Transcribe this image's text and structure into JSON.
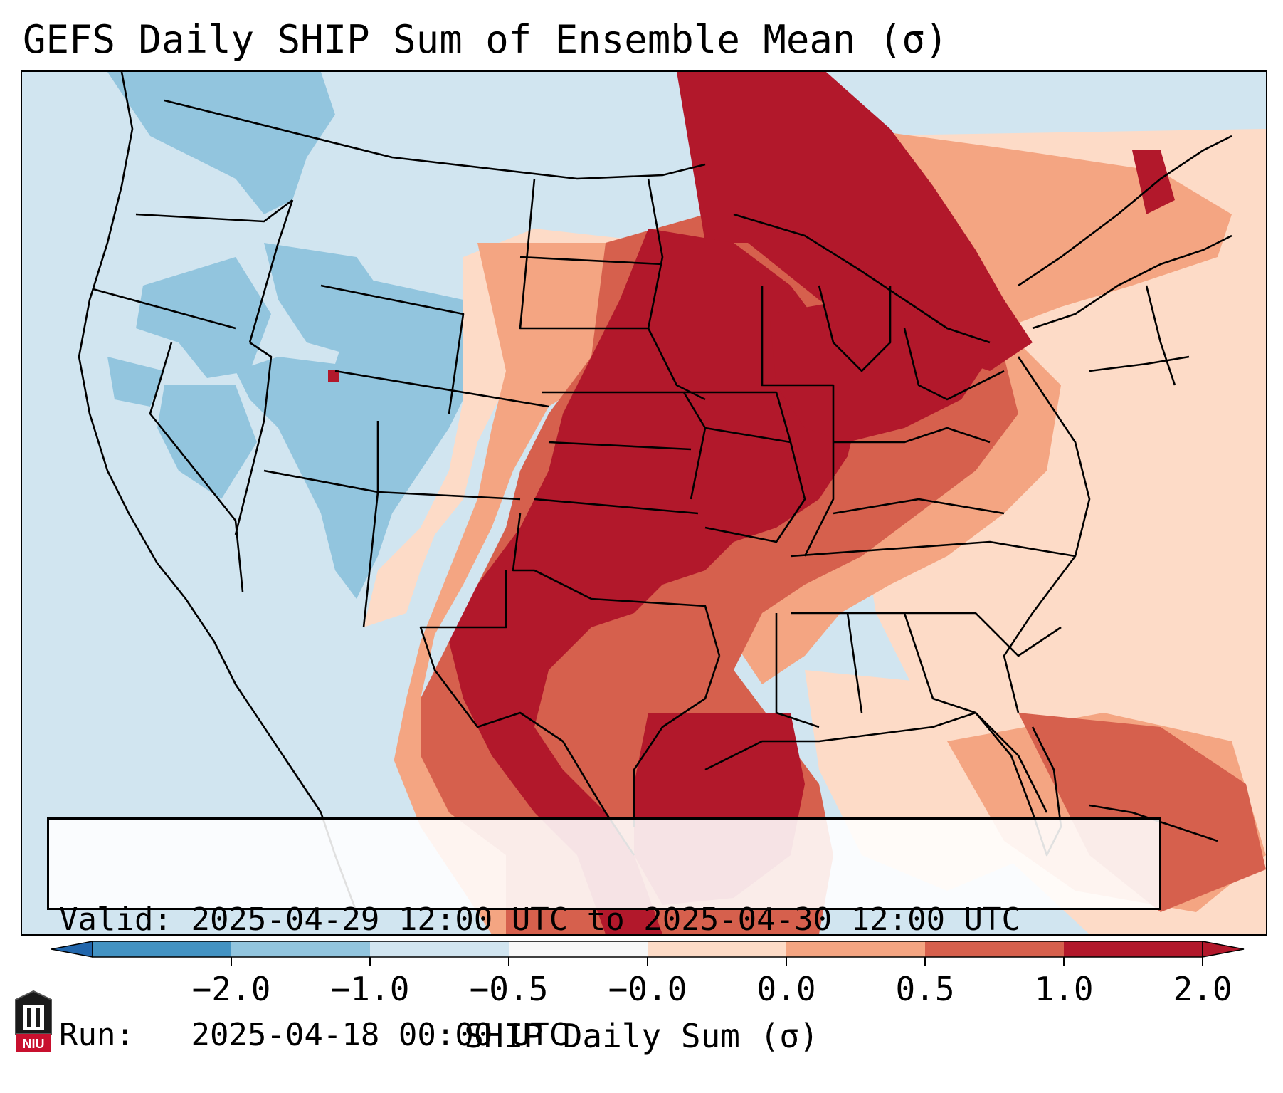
{
  "title": "GEFS Daily SHIP Sum of Ensemble Mean (σ)",
  "info": {
    "valid_label": "Valid:",
    "valid_value": "2025-04-29 12:00 UTC to 2025-04-30 12:00 UTC",
    "run_label": "Run:",
    "run_value": "2025-04-18 00:00 UTC"
  },
  "colorbar": {
    "label": "SHIP Daily Sum (σ)",
    "ticks": [
      "−2.0",
      "−1.0",
      "−0.5",
      "−0.0",
      "0.0",
      "0.5",
      "1.0",
      "2.0"
    ],
    "colors": [
      "#4393c3",
      "#92c5de",
      "#d1e5f0",
      "#f7f7f7",
      "#fddbc7",
      "#f4a582",
      "#d6604d",
      "#b2182b"
    ],
    "under_color": "#2166ac",
    "over_color": "#b2182b"
  },
  "logo": {
    "text": "NIU",
    "icon": "university-seal-icon"
  }
}
